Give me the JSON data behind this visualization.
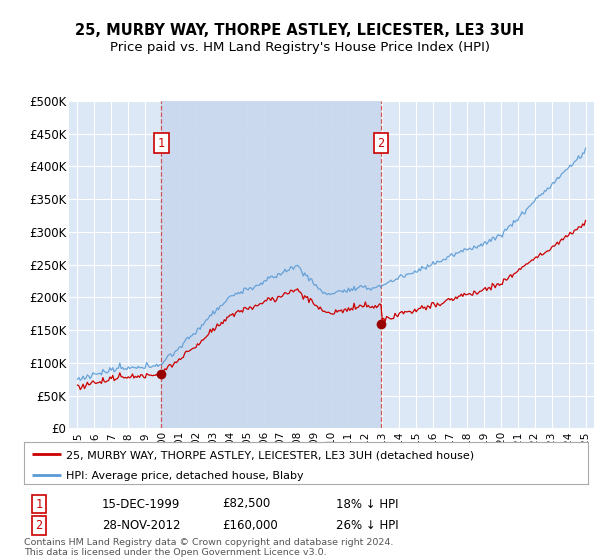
{
  "title": "25, MURBY WAY, THORPE ASTLEY, LEICESTER, LE3 3UH",
  "subtitle": "Price paid vs. HM Land Registry's House Price Index (HPI)",
  "bg_color": "#ffffff",
  "plot_bg_color": "#dce8f5",
  "shade_color": "#c8d8ee",
  "grid_color": "#ffffff",
  "red_line_color": "#cc0000",
  "blue_line_color": "#5b9bd5",
  "marker_color": "#990000",
  "sale1_year": 1999.958,
  "sale1_price": 82500,
  "sale2_year": 2012.916,
  "sale2_price": 160000,
  "ylim_min": 0,
  "ylim_max": 500000,
  "ytick_values": [
    0,
    50000,
    100000,
    150000,
    200000,
    250000,
    300000,
    350000,
    400000,
    450000,
    500000
  ],
  "ytick_labels": [
    "£0",
    "£50K",
    "£100K",
    "£150K",
    "£200K",
    "£250K",
    "£300K",
    "£350K",
    "£400K",
    "£450K",
    "£500K"
  ],
  "xlim_min": 1994.5,
  "xlim_max": 2025.5,
  "legend_entry1": "25, MURBY WAY, THORPE ASTLEY, LEICESTER, LE3 3UH (detached house)",
  "legend_entry2": "HPI: Average price, detached house, Blaby",
  "footnote": "Contains HM Land Registry data © Crown copyright and database right 2024.\nThis data is licensed under the Open Government Licence v3.0.",
  "table_row1_num": "1",
  "table_row1_date": "15-DEC-1999",
  "table_row1_price": "£82,500",
  "table_row1_hpi": "18% ↓ HPI",
  "table_row2_num": "2",
  "table_row2_date": "28-NOV-2012",
  "table_row2_price": "£160,000",
  "table_row2_hpi": "26% ↓ HPI"
}
